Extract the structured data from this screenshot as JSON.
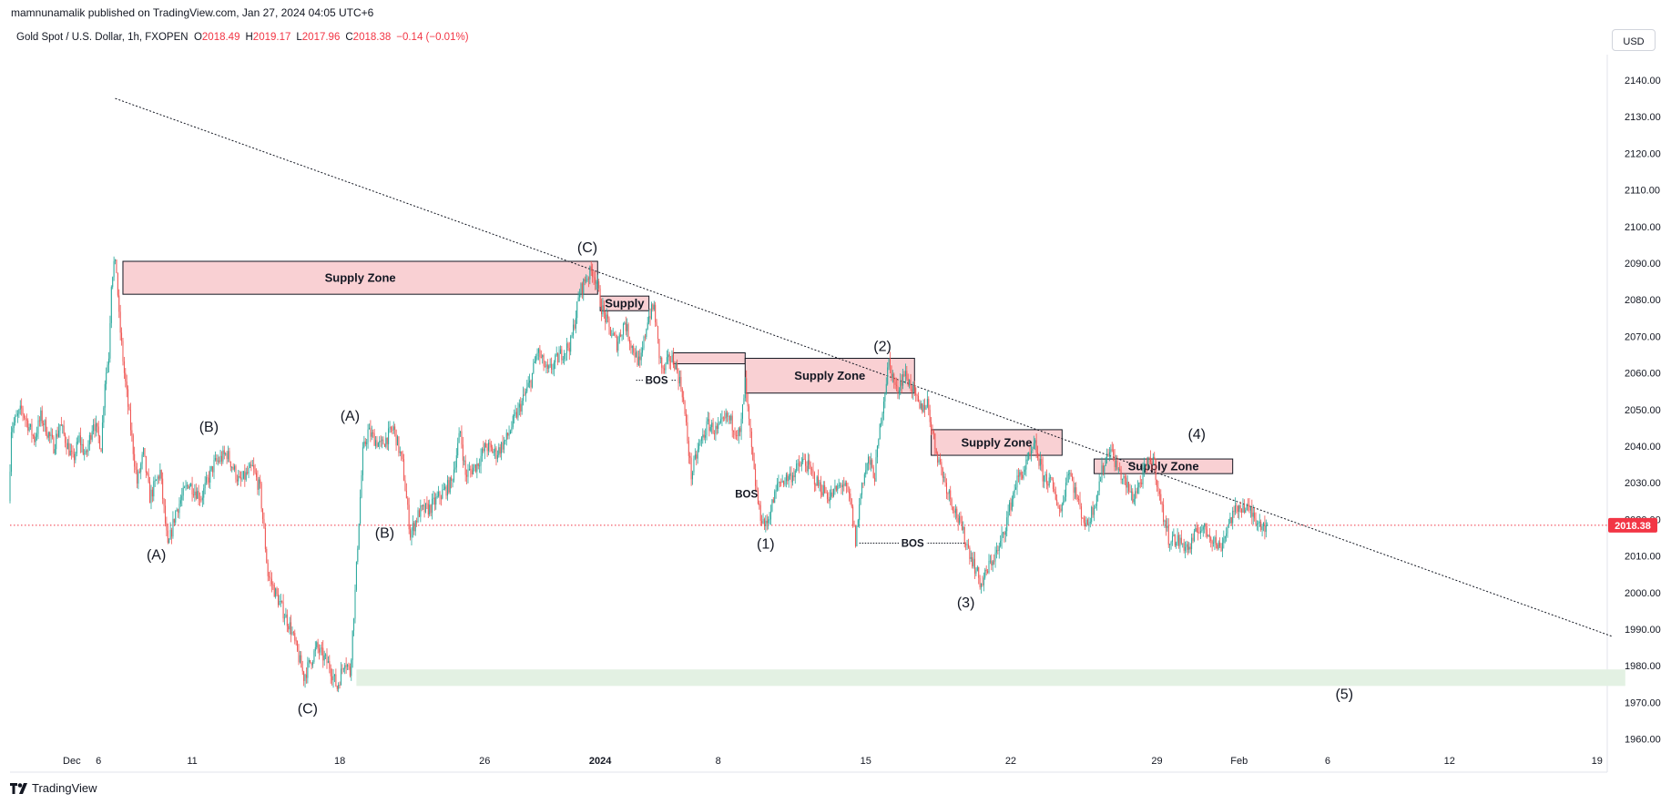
{
  "header": {
    "published_by": "mamnunamalik published on TradingView.com, Jan 27, 2024 04:05 UTC+6",
    "symbol": "Gold Spot / U.S. Dollar, 1h, FXOPEN",
    "open_label": "O",
    "open_value": "2018.49",
    "high_label": "H",
    "high_value": "2019.17",
    "low_label": "L",
    "low_value": "2017.96",
    "close_label": "C",
    "close_value": "2018.38",
    "change": "−0.14 (−0.01%)",
    "currency": "USD"
  },
  "footer": {
    "brand": "TradingView"
  },
  "colors": {
    "up": "#26a69a",
    "down": "#ef5350",
    "supply_fill": "#f9d0d3",
    "demand_fill": "#e3f1e3",
    "price_line": "#f23645",
    "last_price_bg": "#f23645"
  },
  "chart_data": {
    "type": "candlestick",
    "title": "Gold Spot / U.S. Dollar, 1h, FXOPEN",
    "ylim": [
      1955,
      2150
    ],
    "y_ticks": [
      "2140.00",
      "2130.00",
      "2120.00",
      "2110.00",
      "2100.00",
      "2090.00",
      "2080.00",
      "2070.00",
      "2060.00",
      "2050.00",
      "2040.00",
      "2030.00",
      "2020.00",
      "2010.00",
      "2000.00",
      "1990.00",
      "1980.00",
      "1970.00",
      "1960.00"
    ],
    "last_price": "2018.38",
    "last_price_value": 2018.38,
    "x_ticks": [
      {
        "label": "Dec",
        "t": 2
      },
      {
        "label": "6",
        "t": 69
      },
      {
        "label": "11",
        "t": 142
      },
      {
        "label": "18",
        "t": 257
      },
      {
        "label": "26",
        "t": 370
      },
      {
        "label": "2024",
        "t": 460
      },
      {
        "label": "8",
        "t": 552
      },
      {
        "label": "15",
        "t": 667
      },
      {
        "label": "22",
        "t": 780
      },
      {
        "label": "29",
        "t": 894
      },
      {
        "label": "Feb",
        "t": 958
      },
      {
        "label": "6",
        "t": 1027
      },
      {
        "label": "12",
        "t": 1122
      },
      {
        "label": "19",
        "t": 1237
      }
    ],
    "price_path": [
      [
        0,
        2025
      ],
      [
        2,
        2045
      ],
      [
        10,
        2050
      ],
      [
        20,
        2042
      ],
      [
        25,
        2048
      ],
      [
        35,
        2040
      ],
      [
        40,
        2046
      ],
      [
        50,
        2036
      ],
      [
        55,
        2042
      ],
      [
        60,
        2037
      ],
      [
        66,
        2047
      ],
      [
        72,
        2040
      ],
      [
        75,
        2058
      ],
      [
        78,
        2065
      ],
      [
        80,
        2085
      ],
      [
        82,
        2090
      ],
      [
        84,
        2088
      ],
      [
        86,
        2075
      ],
      [
        90,
        2060
      ],
      [
        95,
        2045
      ],
      [
        100,
        2030
      ],
      [
        105,
        2038
      ],
      [
        110,
        2026
      ],
      [
        118,
        2033
      ],
      [
        124,
        2012
      ],
      [
        130,
        2022
      ],
      [
        140,
        2030
      ],
      [
        150,
        2026
      ],
      [
        160,
        2035
      ],
      [
        170,
        2038
      ],
      [
        180,
        2030
      ],
      [
        190,
        2034
      ],
      [
        196,
        2028
      ],
      [
        202,
        2005
      ],
      [
        210,
        1998
      ],
      [
        220,
        1990
      ],
      [
        230,
        1977
      ],
      [
        240,
        1985
      ],
      [
        250,
        1980
      ],
      [
        256,
        1974
      ],
      [
        262,
        1982
      ],
      [
        266,
        1978
      ],
      [
        270,
        2000
      ],
      [
        273,
        2020
      ],
      [
        276,
        2038
      ],
      [
        280,
        2044
      ],
      [
        290,
        2040
      ],
      [
        300,
        2045
      ],
      [
        307,
        2035
      ],
      [
        313,
        2016
      ],
      [
        320,
        2022
      ],
      [
        328,
        2023
      ],
      [
        335,
        2026
      ],
      [
        345,
        2030
      ],
      [
        352,
        2044
      ],
      [
        356,
        2032
      ],
      [
        365,
        2035
      ],
      [
        372,
        2040
      ],
      [
        380,
        2038
      ],
      [
        388,
        2042
      ],
      [
        395,
        2048
      ],
      [
        400,
        2052
      ],
      [
        407,
        2058
      ],
      [
        412,
        2066
      ],
      [
        420,
        2060
      ],
      [
        430,
        2065
      ],
      [
        438,
        2068
      ],
      [
        445,
        2082
      ],
      [
        450,
        2086
      ],
      [
        455,
        2088
      ],
      [
        458,
        2085
      ],
      [
        462,
        2078
      ],
      [
        468,
        2072
      ],
      [
        474,
        2068
      ],
      [
        480,
        2074
      ],
      [
        485,
        2068
      ],
      [
        492,
        2062
      ],
      [
        498,
        2075
      ],
      [
        503,
        2078
      ],
      [
        507,
        2065
      ],
      [
        510,
        2060
      ],
      [
        515,
        2064
      ],
      [
        519,
        2063
      ],
      [
        525,
        2055
      ],
      [
        532,
        2032
      ],
      [
        538,
        2040
      ],
      [
        545,
        2046
      ],
      [
        552,
        2044
      ],
      [
        560,
        2048
      ],
      [
        566,
        2045
      ],
      [
        570,
        2043
      ],
      [
        574,
        2057
      ],
      [
        580,
        2035
      ],
      [
        585,
        2022
      ],
      [
        590,
        2018
      ],
      [
        600,
        2030
      ],
      [
        610,
        2032
      ],
      [
        620,
        2036
      ],
      [
        630,
        2030
      ],
      [
        640,
        2026
      ],
      [
        650,
        2030
      ],
      [
        656,
        2025
      ],
      [
        660,
        2014
      ],
      [
        665,
        2030
      ],
      [
        670,
        2036
      ],
      [
        675,
        2032
      ],
      [
        680,
        2048
      ],
      [
        686,
        2063
      ],
      [
        692,
        2055
      ],
      [
        698,
        2060
      ],
      [
        704,
        2056
      ],
      [
        710,
        2050
      ],
      [
        716,
        2052
      ],
      [
        722,
        2040
      ],
      [
        730,
        2030
      ],
      [
        736,
        2024
      ],
      [
        742,
        2018
      ],
      [
        750,
        2010
      ],
      [
        758,
        2002
      ],
      [
        765,
        2008
      ],
      [
        772,
        2012
      ],
      [
        778,
        2020
      ],
      [
        785,
        2030
      ],
      [
        792,
        2034
      ],
      [
        800,
        2040
      ],
      [
        806,
        2032
      ],
      [
        812,
        2030
      ],
      [
        820,
        2022
      ],
      [
        826,
        2034
      ],
      [
        834,
        2024
      ],
      [
        840,
        2018
      ],
      [
        846,
        2024
      ],
      [
        852,
        2033
      ],
      [
        858,
        2040
      ],
      [
        864,
        2034
      ],
      [
        870,
        2030
      ],
      [
        876,
        2026
      ],
      [
        882,
        2030
      ],
      [
        886,
        2034
      ],
      [
        892,
        2037
      ],
      [
        898,
        2024
      ],
      [
        904,
        2015
      ],
      [
        912,
        2014
      ],
      [
        920,
        2012
      ],
      [
        928,
        2018
      ],
      [
        936,
        2016
      ],
      [
        944,
        2012
      ],
      [
        952,
        2020
      ],
      [
        960,
        2024
      ],
      [
        968,
        2022
      ],
      [
        976,
        2019
      ],
      [
        980,
        2018.38
      ]
    ],
    "zones": [
      {
        "label": "Supply Zone",
        "t0": 88,
        "t1": 458,
        "p_top": 2090.5,
        "p_bot": 2081.5
      },
      {
        "label": "Supply",
        "t0": 460,
        "t1": 498,
        "p_top": 2081,
        "p_bot": 2077
      },
      {
        "label": "",
        "t0": 517,
        "t1": 573,
        "p_top": 2065.5,
        "p_bot": 2062.5
      },
      {
        "label": "Supply Zone",
        "t0": 573,
        "t1": 705,
        "p_top": 2064,
        "p_bot": 2054.5
      },
      {
        "label": "Supply Zone",
        "t0": 718,
        "t1": 820,
        "p_top": 2044.5,
        "p_bot": 2037.5
      },
      {
        "label": "Supply Zone",
        "t0": 845,
        "t1": 953,
        "p_top": 2036.5,
        "p_bot": 2032.5
      }
    ],
    "demand_zone": {
      "t0": 270,
      "t1": 1259,
      "p_top": 1979,
      "p_bot": 1974.5
    },
    "trendline": {
      "t0": 82,
      "p0": 2135,
      "t1": 1249,
      "p1": 1988
    },
    "bos": [
      {
        "label": "BOS",
        "t0": 488,
        "t1": 520,
        "p": 2058
      },
      {
        "label": "BOS",
        "t0": 574,
        "t1": 574,
        "p": 2027
      },
      {
        "label": "BOS",
        "t0": 662,
        "t1": 745,
        "p": 2013.5
      }
    ],
    "wave_labels": [
      {
        "label": "(B)",
        "t": 155,
        "p": 2044
      },
      {
        "label": "(A)",
        "t": 114,
        "p": 2009
      },
      {
        "label": "(C)",
        "t": 232,
        "p": 1967
      },
      {
        "label": "(A)",
        "t": 265,
        "p": 2047
      },
      {
        "label": "(B)",
        "t": 292,
        "p": 2015
      },
      {
        "label": "(C)",
        "t": 450,
        "p": 2093
      },
      {
        "label": "(1)",
        "t": 589,
        "p": 2012
      },
      {
        "label": "(2)",
        "t": 680,
        "p": 2066
      },
      {
        "label": "(3)",
        "t": 745,
        "p": 1996
      },
      {
        "label": "(4)",
        "t": 925,
        "p": 2042
      },
      {
        "label": "(5)",
        "t": 1040,
        "p": 1971
      }
    ]
  }
}
